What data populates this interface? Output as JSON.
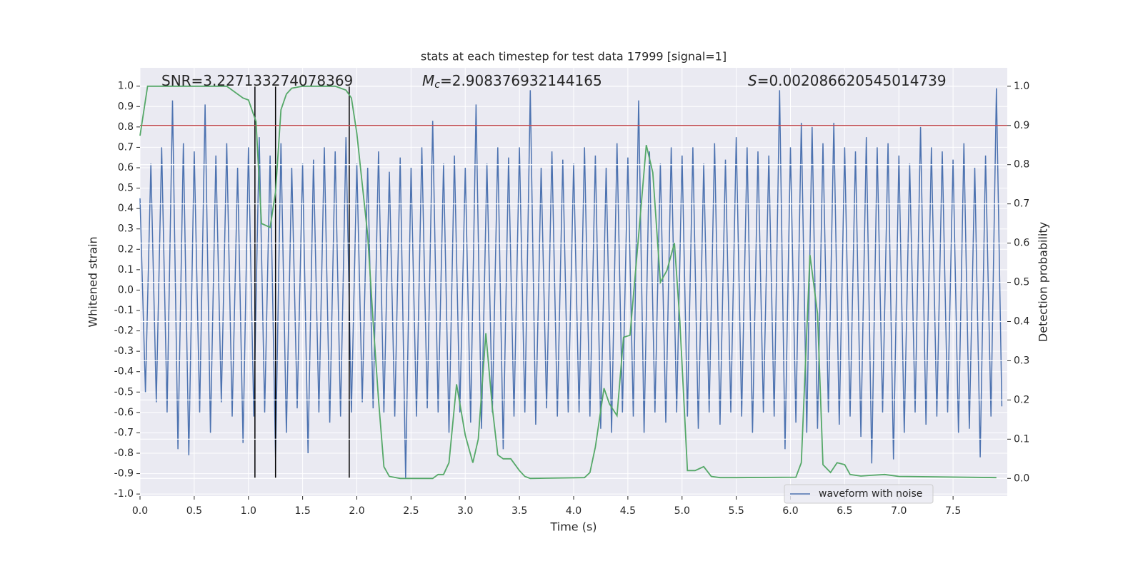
{
  "chart_data": {
    "type": "line",
    "title": "stats at each timestep for test data 17999 [signal=1]",
    "xlabel": "Time (s)",
    "ylabel": "Whitened strain",
    "y2label": "Detection probability",
    "annotations": [
      {
        "text": "SNR=3.227133274078369"
      },
      {
        "symbol": "M",
        "subscript": "c",
        "text": "=2.908376932144165"
      },
      {
        "symbol": "S",
        "text": "=0.002086620545014739"
      }
    ],
    "xlim": [
      0,
      8
    ],
    "ylim": [
      -1.01,
      1.09
    ],
    "y2lim": [
      -0.045,
      1.047
    ],
    "xticks": [
      {
        "value": 0,
        "label": "0.0"
      },
      0.5,
      {
        "value": 1,
        "label": "1.0"
      },
      1.5,
      {
        "value": 2,
        "label": "2.0"
      },
      2.5,
      {
        "value": 3,
        "label": "3.0"
      },
      3.5,
      {
        "value": 4,
        "label": "4.0"
      },
      4.5,
      {
        "value": 5,
        "label": "5.0"
      },
      5.5,
      {
        "value": 6,
        "label": "6.0"
      },
      6.5,
      {
        "value": 7,
        "label": "7.0"
      },
      7.5
    ],
    "yticks": [
      {
        "value": 1,
        "label": "1.0"
      },
      0.9,
      0.8,
      0.7,
      0.6,
      0.5,
      0.4,
      0.3,
      0.2,
      0.1,
      {
        "value": 0,
        "label": "0.0"
      },
      -0.1,
      -0.2,
      -0.3,
      -0.4,
      -0.5,
      -0.6,
      -0.7,
      -0.8,
      -0.9,
      {
        "value": -1,
        "label": "-1.0"
      }
    ],
    "y2ticks": [
      {
        "value": 1,
        "label": "1.0"
      },
      0.9,
      0.8,
      0.7,
      0.6,
      0.5,
      0.4,
      0.3,
      0.2,
      0.1,
      {
        "value": 0,
        "label": "0.0"
      }
    ],
    "grid": true,
    "legend": "lower right",
    "series": [
      {
        "name": "waveform with noise",
        "color": "#4c72b0",
        "x": [
          0,
          0.05,
          0.1,
          0.15,
          0.2,
          0.25,
          0.3,
          0.35,
          0.4,
          0.45,
          0.5,
          0.55,
          0.6,
          0.65,
          0.7,
          0.75,
          0.8,
          0.85,
          0.9,
          0.95,
          1,
          1.05,
          1.1,
          1.15,
          1.2,
          1.25,
          1.3,
          1.35,
          1.4,
          1.45,
          1.5,
          1.55,
          1.6,
          1.65,
          1.7,
          1.75,
          1.8,
          1.85,
          1.9,
          1.95,
          2,
          2.05,
          2.1,
          2.15,
          2.2,
          2.25,
          2.3,
          2.35,
          2.4,
          2.45,
          2.5,
          2.55,
          2.6,
          2.65,
          2.7,
          2.75,
          2.8,
          2.85,
          2.9,
          2.95,
          3,
          3.05,
          3.1,
          3.15,
          3.2,
          3.25,
          3.3,
          3.35,
          3.4,
          3.45,
          3.5,
          3.55,
          3.6,
          3.65,
          3.7,
          3.75,
          3.8,
          3.85,
          3.9,
          3.95,
          4,
          4.05,
          4.1,
          4.15,
          4.2,
          4.25,
          4.3,
          4.35,
          4.4,
          4.45,
          4.5,
          4.55,
          4.6,
          4.65,
          4.7,
          4.75,
          4.8,
          4.85,
          4.9,
          4.95,
          5,
          5.05,
          5.1,
          5.15,
          5.2,
          5.25,
          5.3,
          5.35,
          5.4,
          5.45,
          5.5,
          5.55,
          5.6,
          5.65,
          5.7,
          5.75,
          5.8,
          5.85,
          5.9,
          5.95,
          6,
          6.05,
          6.1,
          6.15,
          6.2,
          6.25,
          6.3,
          6.35,
          6.4,
          6.45,
          6.5,
          6.55,
          6.6,
          6.65,
          6.7,
          6.75,
          6.8,
          6.85,
          6.9,
          6.95,
          7,
          7.05,
          7.1,
          7.15,
          7.2,
          7.25,
          7.3,
          7.35,
          7.4,
          7.45,
          7.5,
          7.55,
          7.6,
          7.65,
          7.7,
          7.75,
          7.8,
          7.85,
          7.9,
          7.95
        ],
        "values": [
          0.45,
          -0.5,
          0.62,
          -0.55,
          0.7,
          -0.6,
          0.93,
          -0.78,
          0.72,
          -0.81,
          0.68,
          -0.6,
          0.91,
          -0.7,
          0.66,
          -0.55,
          0.72,
          -0.62,
          0.6,
          -0.75,
          0.7,
          -0.62,
          0.75,
          -0.6,
          0.66,
          -0.82,
          0.72,
          -0.7,
          0.6,
          -0.58,
          0.62,
          -0.8,
          0.64,
          -0.6,
          0.7,
          -0.65,
          0.68,
          -0.62,
          0.75,
          -0.6,
          0.62,
          -0.55,
          0.6,
          -0.58,
          0.68,
          -0.6,
          0.58,
          -0.62,
          0.65,
          -0.92,
          0.6,
          -0.62,
          0.7,
          -0.58,
          0.83,
          -0.6,
          0.62,
          -0.7,
          0.66,
          -0.6,
          0.6,
          -0.65,
          0.91,
          -0.68,
          0.62,
          -0.6,
          0.7,
          -0.78,
          0.65,
          -0.62,
          0.7,
          -0.6,
          0.98,
          -0.66,
          0.6,
          -0.58,
          0.68,
          -0.62,
          0.64,
          -0.6,
          0.62,
          -0.6,
          0.7,
          -0.62,
          0.66,
          -0.68,
          0.6,
          -0.7,
          0.72,
          -0.6,
          0.65,
          -0.62,
          0.93,
          -0.7,
          0.68,
          -0.6,
          0.62,
          -0.65,
          0.7,
          -0.6,
          0.66,
          -0.62,
          0.7,
          -0.68,
          0.62,
          -0.6,
          0.72,
          -0.66,
          0.64,
          -0.6,
          0.75,
          -0.62,
          0.7,
          -0.7,
          0.68,
          -0.6,
          0.66,
          -0.62,
          0.98,
          -0.78,
          0.7,
          -0.65,
          0.82,
          -0.7,
          0.8,
          -0.68,
          0.72,
          -0.6,
          0.82,
          -0.66,
          0.7,
          -0.62,
          0.68,
          -0.72,
          0.75,
          -0.85,
          0.7,
          -0.6,
          0.72,
          -0.83,
          0.66,
          -0.7,
          0.62,
          -0.6,
          0.8,
          -0.66,
          0.7,
          -0.62,
          0.68,
          -0.6,
          0.64,
          -0.7,
          0.72,
          -0.68,
          0.6,
          -0.82,
          0.66,
          -0.62,
          0.99,
          -0.57
        ]
      },
      {
        "color": "#55a868",
        "axis": "y2",
        "x": [
          0,
          0.07,
          0.8,
          0.95,
          1,
          1.07,
          1.12,
          1.2,
          1.25,
          1.3,
          1.35,
          1.4,
          1.5,
          1.8,
          1.9,
          1.95,
          2,
          2.05,
          2.1,
          2.15,
          2.2,
          2.25,
          2.3,
          2.4,
          2.7,
          2.75,
          2.8,
          2.85,
          2.92,
          3,
          3.07,
          3.12,
          3.19,
          3.25,
          3.3,
          3.35,
          3.42,
          3.5,
          3.55,
          3.6,
          4.1,
          4.15,
          4.2,
          4.28,
          4.33,
          4.4,
          4.46,
          4.52,
          4.6,
          4.67,
          4.73,
          4.8,
          4.86,
          4.93,
          4.98,
          5.05,
          5.12,
          5.2,
          5.27,
          5.35,
          5.5,
          6.05,
          6.1,
          6.18,
          6.25,
          6.3,
          6.37,
          6.43,
          6.5,
          6.55,
          6.65,
          6.75,
          6.87,
          7,
          7.9
        ],
        "values": [
          0.874,
          1.0,
          1.0,
          0.97,
          0.965,
          0.91,
          0.65,
          0.64,
          0.73,
          0.94,
          0.98,
          0.995,
          1.0,
          1.0,
          0.99,
          0.97,
          0.88,
          0.75,
          0.62,
          0.4,
          0.2,
          0.03,
          0.005,
          0.0,
          0.0,
          0.01,
          0.01,
          0.04,
          0.24,
          0.11,
          0.04,
          0.1,
          0.37,
          0.18,
          0.06,
          0.05,
          0.05,
          0.02,
          0.005,
          0.0,
          0.002,
          0.015,
          0.08,
          0.23,
          0.19,
          0.16,
          0.36,
          0.365,
          0.62,
          0.85,
          0.78,
          0.5,
          0.53,
          0.6,
          0.4,
          0.02,
          0.02,
          0.03,
          0.005,
          0.002,
          0.002,
          0.003,
          0.04,
          0.57,
          0.42,
          0.035,
          0.015,
          0.04,
          0.035,
          0.01,
          0.006,
          0.008,
          0.01,
          0.005,
          0.002
        ]
      }
    ],
    "hlines": [
      {
        "value": 0.9,
        "axis": "y2",
        "color": "#c44e52"
      }
    ],
    "vlines": [
      {
        "x": 1.06,
        "ymin": -0.92,
        "ymax": 1.0,
        "color": "#000000"
      },
      {
        "x": 1.25,
        "ymin": -0.92,
        "ymax": 1.0,
        "color": "#000000"
      },
      {
        "x": 1.93,
        "ymin": -0.92,
        "ymax": 1.0,
        "color": "#000000"
      }
    ]
  }
}
